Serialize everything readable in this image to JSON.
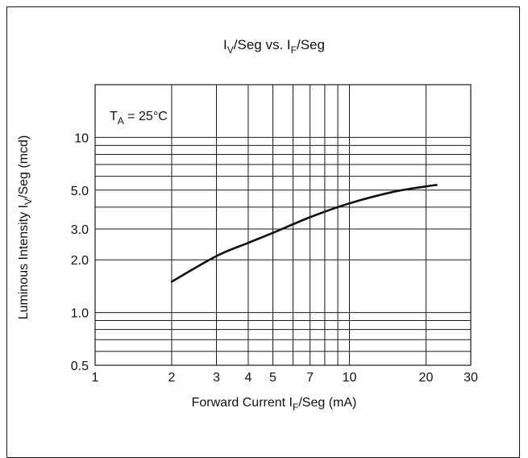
{
  "chart_data": {
    "type": "line",
    "title": {
      "main": "I",
      "sub1": "V",
      "mid": "/Seg vs. I",
      "sub2": "F",
      "end": "/Seg"
    },
    "xlabel": {
      "main": "Forward Current I",
      "sub": "F",
      "end": "/Seg (mA)"
    },
    "ylabel": {
      "main": "Luminous Intensity I",
      "sub": "V",
      "end": "/Seg (mcd)"
    },
    "x_scale": "log",
    "y_scale": "log",
    "xlim": [
      1,
      30
    ],
    "ylim": [
      0.5,
      20
    ],
    "x_ticks": [
      1,
      2,
      3,
      4,
      5,
      7,
      10,
      20,
      30
    ],
    "x_tick_labels": [
      "1",
      "2",
      "3",
      "4",
      "5",
      "7",
      "10",
      "20",
      "30"
    ],
    "y_ticks": [
      0.5,
      1.0,
      2.0,
      3.0,
      5.0,
      10
    ],
    "y_tick_labels": [
      "0.5",
      "1.0",
      "2.0",
      "3.0",
      "5.0",
      "10"
    ],
    "x_gridlines": [
      2,
      3,
      4,
      5,
      6,
      7,
      8,
      9,
      10,
      20
    ],
    "y_gridlines": [
      0.6,
      0.7,
      0.8,
      0.9,
      1,
      2,
      3,
      4,
      5,
      6,
      7,
      8,
      9,
      10
    ],
    "grid": true,
    "annotation": {
      "main": "T",
      "sub": "A",
      "end": " = 25°C"
    },
    "series": [
      {
        "x": [
          2,
          3,
          4,
          5,
          7,
          10,
          15,
          20,
          22
        ],
        "y": [
          1.5,
          2.1,
          2.5,
          2.85,
          3.5,
          4.2,
          4.9,
          5.25,
          5.35
        ]
      }
    ]
  }
}
